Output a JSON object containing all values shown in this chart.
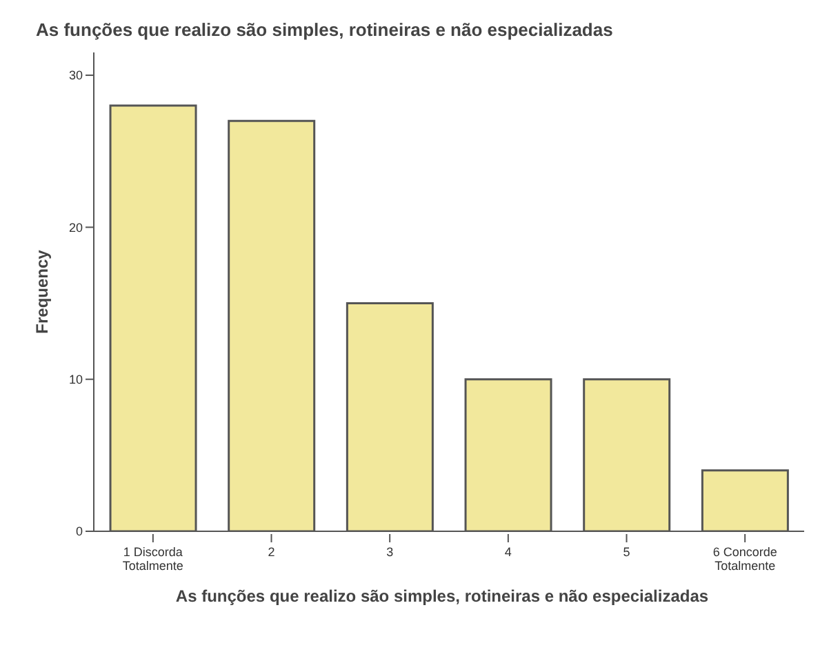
{
  "chart_data": {
    "type": "bar",
    "title": "As funções que realizo são simples, rotineiras e não especializadas",
    "xlabel": "As funções que realizo são simples, rotineiras e não especializadas",
    "ylabel": "Frequency",
    "categories": [
      "1 Discorda\nTotalmente",
      "2",
      "3",
      "4",
      "5",
      "6 Concorde\nTotalmente"
    ],
    "values": [
      28,
      27,
      15,
      10,
      10,
      4
    ],
    "color": "#f2e89c",
    "ylim": [
      0,
      31.5
    ],
    "yticks": [
      0,
      10,
      20,
      30
    ],
    "grid": false,
    "legend": false
  }
}
